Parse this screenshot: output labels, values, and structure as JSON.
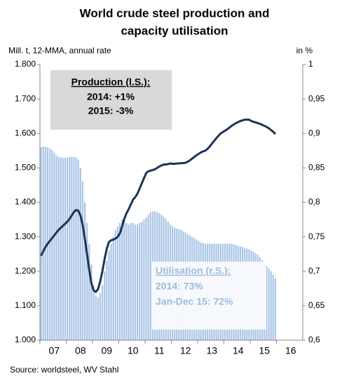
{
  "chart_data": {
    "type": "bar-line",
    "title": [
      "World crude steel production and",
      "capacity utilisation"
    ],
    "y_label": "Mill. t, 12-MMA, annual rate",
    "y2_label": "in %",
    "source": "Source: worldsteel, WV Stahl",
    "categories": [
      null,
      null,
      null,
      null,
      null,
      null,
      "07",
      null,
      null,
      null,
      null,
      null,
      null,
      null,
      null,
      null,
      null,
      null,
      "08",
      null,
      null,
      null,
      null,
      null,
      null,
      null,
      null,
      null,
      null,
      null,
      "09",
      null,
      null,
      null,
      null,
      null,
      null,
      null,
      null,
      null,
      null,
      null,
      "10",
      null,
      null,
      null,
      null,
      null,
      null,
      null,
      null,
      null,
      null,
      null,
      "11",
      null,
      null,
      null,
      null,
      null,
      null,
      null,
      null,
      null,
      null,
      null,
      "12",
      null,
      null,
      null,
      null,
      null,
      null,
      null,
      null,
      null,
      null,
      null,
      "13",
      null,
      null,
      null,
      null,
      null,
      null,
      null,
      null,
      null,
      null,
      null,
      "14",
      null,
      null,
      null,
      null,
      null,
      null,
      null,
      null,
      null,
      null,
      null,
      "15",
      null,
      null,
      null,
      null,
      null,
      null,
      null,
      null,
      null,
      null,
      null,
      "16",
      null,
      null,
      null,
      null,
      null
    ],
    "ylim": [
      1000,
      1800
    ],
    "yticks": [
      {
        "value": 1000,
        "label": "1.000"
      },
      {
        "value": 1100,
        "label": "1.100"
      },
      {
        "value": 1200,
        "label": "1.200"
      },
      {
        "value": 1300,
        "label": "1.300"
      },
      {
        "value": 1400,
        "label": "1.400"
      },
      {
        "value": 1500,
        "label": "1.500"
      },
      {
        "value": 1600,
        "label": "1.600"
      },
      {
        "value": 1700,
        "label": "1.700"
      },
      {
        "value": 1800,
        "label": "1.800"
      }
    ],
    "y2lim": [
      0.6,
      1
    ],
    "y2ticks": [
      {
        "value": 0.6,
        "label": "0,6"
      },
      {
        "value": 0.65,
        "label": "0,65"
      },
      {
        "value": 0.7,
        "label": "0,7"
      },
      {
        "value": 0.75,
        "label": "0,75"
      },
      {
        "value": 0.8,
        "label": "0,8"
      },
      {
        "value": 0.85,
        "label": "0,85"
      },
      {
        "value": 0.9,
        "label": "0,9"
      },
      {
        "value": 0.95,
        "label": "0,95"
      },
      1
    ],
    "series": [
      {
        "name": "Utilisation (r.S.):",
        "type": "bar",
        "axis": "y2",
        "color": "#a9c4e6",
        "notes": [
          "2014: 73%",
          "Jan-Dec 15: 72%"
        ],
        "values": [
          0.88,
          0.881,
          0.881,
          0.88,
          0.878,
          0.876,
          0.872,
          0.868,
          0.866,
          0.865,
          0.865,
          0.865,
          0.865,
          0.866,
          0.866,
          0.866,
          0.865,
          0.862,
          0.85,
          0.83,
          0.8,
          0.77,
          0.74,
          0.71,
          0.68,
          0.665,
          0.662,
          0.668,
          0.68,
          0.7,
          0.715,
          0.73,
          0.74,
          0.75,
          0.76,
          0.765,
          0.77,
          0.775,
          0.775,
          0.77,
          0.768,
          0.77,
          0.77,
          0.768,
          0.768,
          0.77,
          0.772,
          0.775,
          0.778,
          0.782,
          0.786,
          0.787,
          0.787,
          0.786,
          0.784,
          0.782,
          0.779,
          0.776,
          0.772,
          0.768,
          0.765,
          0.763,
          0.762,
          0.761,
          0.76,
          0.758,
          0.756,
          0.754,
          0.752,
          0.75,
          0.748,
          0.746,
          0.744,
          0.742,
          0.741,
          0.74,
          0.74,
          0.74,
          0.74,
          0.74,
          0.74,
          0.74,
          0.74,
          0.74,
          0.74,
          0.74,
          0.74,
          0.74,
          0.739,
          0.738,
          0.737,
          0.736,
          0.735,
          0.734,
          0.733,
          0.732,
          0.73,
          0.728,
          0.726,
          0.724,
          0.72,
          0.716,
          0.712,
          0.708,
          0.704,
          0.7,
          0.695,
          0.69,
          null,
          null,
          null,
          null,
          null,
          null,
          null,
          null,
          null,
          null,
          null,
          null
        ]
      },
      {
        "name": "Production (l.S.):",
        "type": "line",
        "axis": "y",
        "color": "#1c3557",
        "notes": [
          "2014: +1%",
          "2015: -3%"
        ],
        "values": [
          1245,
          1258,
          1270,
          1280,
          1288,
          1296,
          1304,
          1312,
          1320,
          1326,
          1332,
          1338,
          1344,
          1352,
          1362,
          1372,
          1378,
          1376,
          1362,
          1335,
          1295,
          1250,
          1205,
          1165,
          1145,
          1140,
          1148,
          1170,
          1200,
          1235,
          1265,
          1285,
          1290,
          1292,
          1295,
          1300,
          1310,
          1330,
          1352,
          1368,
          1380,
          1394,
          1408,
          1415,
          1425,
          1440,
          1455,
          1470,
          1485,
          1490,
          1492,
          1494,
          1496,
          1500,
          1504,
          1507,
          1510,
          1510,
          1511,
          1513,
          1512,
          1512,
          1513,
          1513,
          1514,
          1514,
          1515,
          1518,
          1522,
          1527,
          1532,
          1537,
          1541,
          1545,
          1548,
          1550,
          1555,
          1562,
          1570,
          1578,
          1586,
          1593,
          1600,
          1604,
          1608,
          1612,
          1617,
          1622,
          1626,
          1630,
          1633,
          1636,
          1638,
          1640,
          1640,
          1640,
          1636,
          1634,
          1632,
          1630,
          1628,
          1625,
          1622,
          1619,
          1615,
          1610,
          1605,
          1598,
          null,
          null,
          null,
          null,
          null,
          null,
          null,
          null,
          null,
          null,
          null,
          null
        ]
      }
    ]
  }
}
